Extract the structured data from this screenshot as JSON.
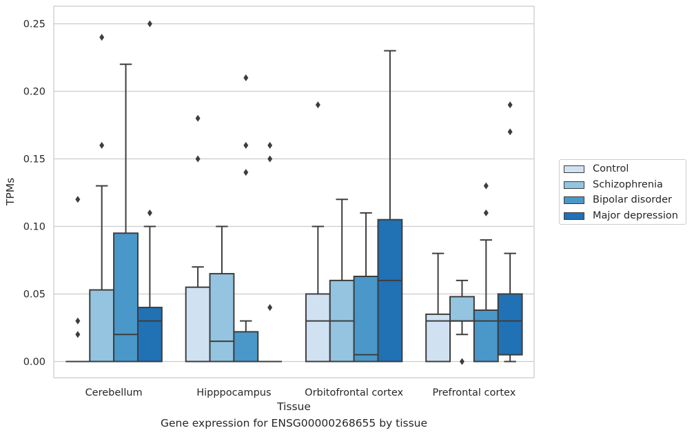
{
  "caption": "Gene expression for ENSG00000268655 by tissue",
  "chart_data": {
    "type": "box",
    "title": "",
    "xlabel": "Tissue",
    "ylabel": "TPMs",
    "ylim": [
      -0.012,
      0.263
    ],
    "yticks": [
      0.0,
      0.05,
      0.1,
      0.15,
      0.2,
      0.25
    ],
    "ytick_labels": [
      "0.00",
      "0.05",
      "0.10",
      "0.15",
      "0.20",
      "0.25"
    ],
    "grid": "horizontal",
    "legend_position": "right",
    "categories": [
      "Cerebellum",
      "Hipppocampus",
      "Orbitofrontal cortex",
      "Prefrontal cortex"
    ],
    "series": [
      {
        "name": "Control",
        "color": "#d0e1f2",
        "boxes": [
          {
            "q1": 0.0,
            "median": 0.0,
            "q3": 0.0,
            "whisker_low": 0.0,
            "whisker_high": 0.0,
            "outliers": [
              0.02,
              0.03,
              0.12
            ]
          },
          {
            "q1": 0.0,
            "median": 0.0,
            "q3": 0.055,
            "whisker_low": 0.0,
            "whisker_high": 0.07,
            "outliers": [
              0.15,
              0.18
            ]
          },
          {
            "q1": 0.0,
            "median": 0.03,
            "q3": 0.05,
            "whisker_low": 0.0,
            "whisker_high": 0.1,
            "outliers": [
              0.19
            ]
          },
          {
            "q1": 0.0,
            "median": 0.03,
            "q3": 0.035,
            "whisker_low": 0.0,
            "whisker_high": 0.08,
            "outliers": []
          }
        ]
      },
      {
        "name": "Schizophrenia",
        "color": "#94c4df",
        "boxes": [
          {
            "q1": 0.0,
            "median": 0.0,
            "q3": 0.053,
            "whisker_low": 0.0,
            "whisker_high": 0.13,
            "outliers": [
              0.16,
              0.24
            ]
          },
          {
            "q1": 0.0,
            "median": 0.015,
            "q3": 0.065,
            "whisker_low": 0.0,
            "whisker_high": 0.1,
            "outliers": []
          },
          {
            "q1": 0.0,
            "median": 0.03,
            "q3": 0.06,
            "whisker_low": 0.0,
            "whisker_high": 0.12,
            "outliers": []
          },
          {
            "q1": 0.03,
            "median": 0.03,
            "q3": 0.048,
            "whisker_low": 0.02,
            "whisker_high": 0.06,
            "outliers": [
              0.0
            ]
          }
        ]
      },
      {
        "name": "Bipolar disorder",
        "color": "#4a98c9",
        "boxes": [
          {
            "q1": 0.0,
            "median": 0.02,
            "q3": 0.095,
            "whisker_low": 0.0,
            "whisker_high": 0.22,
            "outliers": []
          },
          {
            "q1": 0.0,
            "median": 0.0,
            "q3": 0.022,
            "whisker_low": 0.0,
            "whisker_high": 0.03,
            "outliers": [
              0.14,
              0.16,
              0.21
            ]
          },
          {
            "q1": 0.0,
            "median": 0.005,
            "q3": 0.063,
            "whisker_low": 0.0,
            "whisker_high": 0.11,
            "outliers": []
          },
          {
            "q1": 0.0,
            "median": 0.03,
            "q3": 0.038,
            "whisker_low": 0.0,
            "whisker_high": 0.09,
            "outliers": [
              0.11,
              0.13
            ]
          }
        ]
      },
      {
        "name": "Major depression",
        "color": "#2171b5",
        "boxes": [
          {
            "q1": 0.0,
            "median": 0.03,
            "q3": 0.04,
            "whisker_low": 0.0,
            "whisker_high": 0.1,
            "outliers": [
              0.11,
              0.25
            ]
          },
          {
            "q1": 0.0,
            "median": 0.0,
            "q3": 0.0,
            "whisker_low": 0.0,
            "whisker_high": 0.0,
            "outliers": [
              0.04,
              0.15,
              0.16
            ]
          },
          {
            "q1": 0.0,
            "median": 0.06,
            "q3": 0.105,
            "whisker_low": 0.0,
            "whisker_high": 0.23,
            "outliers": []
          },
          {
            "q1": 0.005,
            "median": 0.03,
            "q3": 0.05,
            "whisker_low": 0.0,
            "whisker_high": 0.08,
            "outliers": [
              0.17,
              0.19
            ]
          }
        ]
      }
    ]
  }
}
